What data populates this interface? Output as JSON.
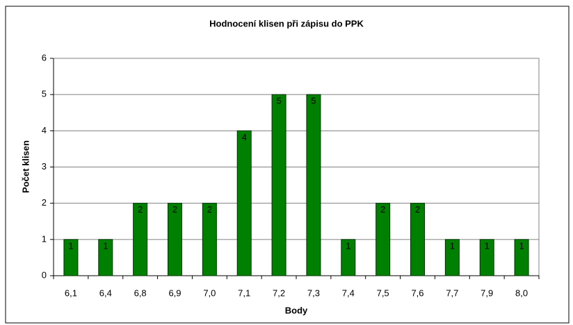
{
  "chart_data": {
    "type": "bar",
    "title": "Hodnocení klisen při zápisu do PPK",
    "x_label": "Body",
    "y_label": "Počet klisen",
    "categories": [
      "6,1",
      "6,4",
      "6,8",
      "6,9",
      "7,0",
      "7,1",
      "7,2",
      "7,3",
      "7,4",
      "7,5",
      "7,6",
      "7,7",
      "7,9",
      "8,0"
    ],
    "values": [
      1,
      1,
      2,
      2,
      2,
      4,
      5,
      5,
      1,
      2,
      2,
      1,
      1,
      1
    ],
    "color": "#008000",
    "ylim": [
      0,
      6
    ],
    "yticks": [
      0,
      1,
      2,
      3,
      4,
      5,
      6
    ],
    "grid": true,
    "data_labels": true
  }
}
